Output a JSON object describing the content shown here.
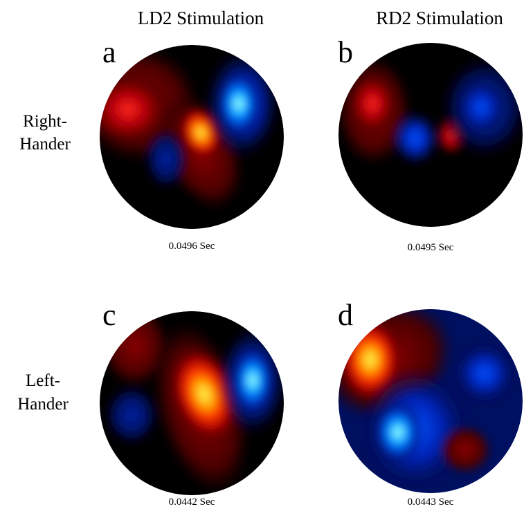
{
  "columns": [
    "LD2 Stimulation",
    "RD2 Stimulation"
  ],
  "rows": [
    {
      "lines": [
        "Right-",
        "Hander"
      ]
    },
    {
      "lines": [
        "Left-",
        "Hander"
      ]
    }
  ],
  "panels": [
    {
      "letter": "a",
      "caption": "0.0496 Sec"
    },
    {
      "letter": "b",
      "caption": "0.0495 Sec"
    },
    {
      "letter": "c",
      "caption": "0.0442 Sec"
    },
    {
      "letter": "d",
      "caption": "0.0443 Sec"
    }
  ]
}
